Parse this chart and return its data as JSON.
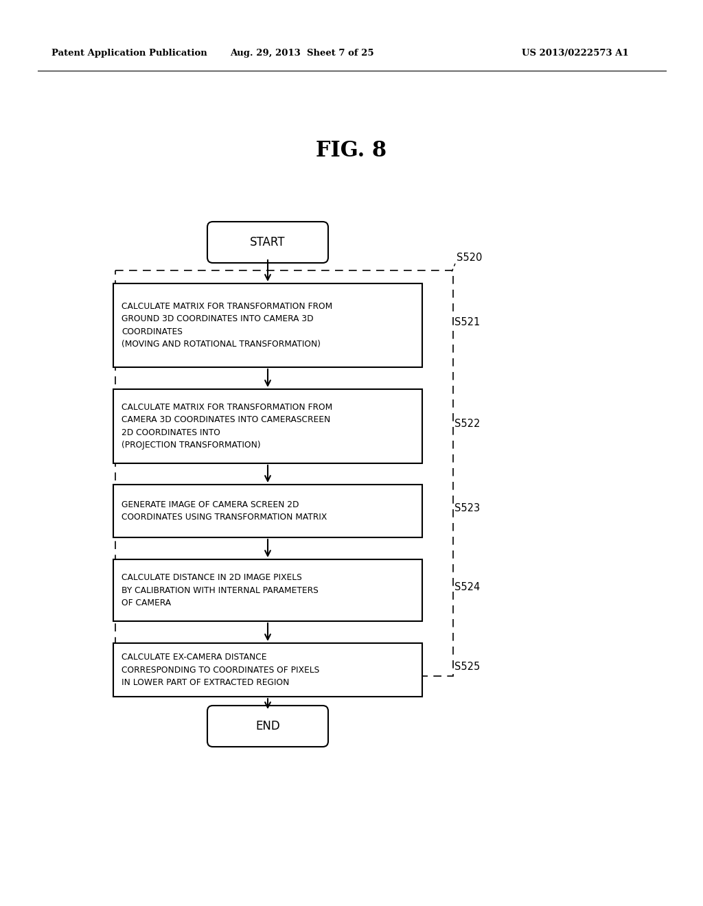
{
  "bg_color": "#ffffff",
  "fig_title": "FIG. 8",
  "header_left": "Patent Application Publication",
  "header_mid": "Aug. 29, 2013  Sheet 7 of 25",
  "header_right": "US 2013/0222573 A1",
  "start_label": "START",
  "end_label": "END",
  "outer_label": "S520",
  "steps": [
    {
      "label": "S521",
      "text": "CALCULATE MATRIX FOR TRANSFORMATION FROM\nGROUND 3D COORDINATES INTO CAMERA 3D\nCOORDINATES\n(MOVING AND ROTATIONAL TRANSFORMATION)"
    },
    {
      "label": "S522",
      "text": "CALCULATE MATRIX FOR TRANSFORMATION FROM\nCAMERA 3D COORDINATES INTO CAMERASCREEN\n2D COORDINATES INTO\n(PROJECTION TRANSFORMATION)"
    },
    {
      "label": "S523",
      "text": "GENERATE IMAGE OF CAMERA SCREEN 2D\nCOORDINATES USING TRANSFORMATION MATRIX"
    },
    {
      "label": "S524",
      "text": "CALCULATE DISTANCE IN 2D IMAGE PIXELS\nBY CALIBRATION WITH INTERNAL PARAMETERS\nOF CAMERA"
    },
    {
      "label": "S525",
      "text": "CALCULATE EX-CAMERA DISTANCE\nCORRESPONDING TO COORDINATES OF PIXELS\nIN LOWER PART OF EXTRACTED REGION"
    }
  ]
}
